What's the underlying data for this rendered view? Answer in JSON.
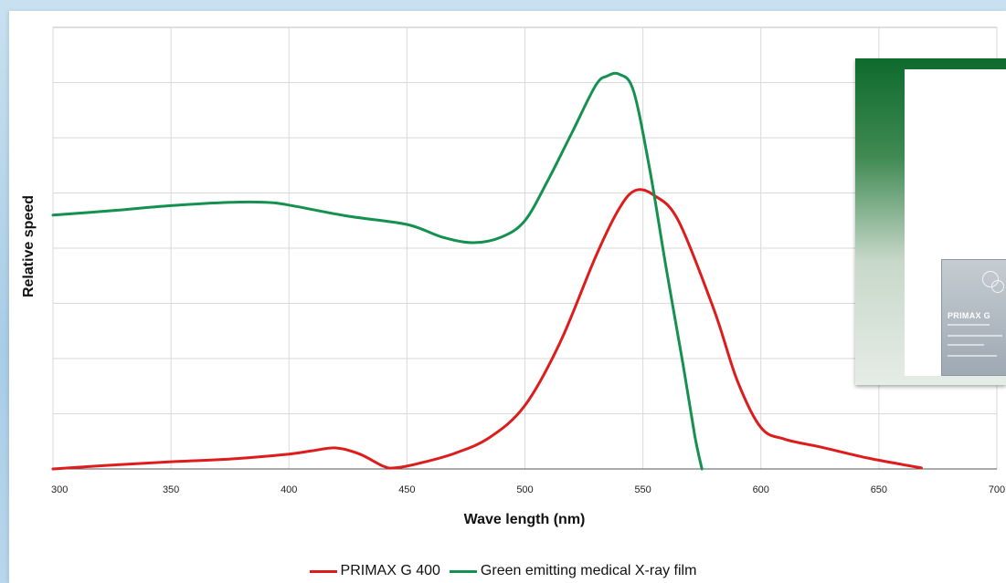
{
  "colors": {
    "primax": "#dd1c1c",
    "green_film": "#15914f",
    "grid": "#d9d9d9"
  },
  "chart_data": {
    "type": "line",
    "title": "",
    "xlabel": "Wave length (nm)",
    "ylabel": "Relative speed",
    "xlim": [
      300,
      700
    ],
    "ylim": [
      0,
      8
    ],
    "x_ticks": [
      300,
      350,
      400,
      450,
      500,
      550,
      600,
      650,
      700
    ],
    "grid": true,
    "legend_position": "bottom-center",
    "series": [
      {
        "name": "PRIMAX G 400",
        "color": "#dd1c1c",
        "points": [
          [
            300,
            0.0
          ],
          [
            325,
            0.07
          ],
          [
            350,
            0.13
          ],
          [
            375,
            0.18
          ],
          [
            400,
            0.27
          ],
          [
            410,
            0.33
          ],
          [
            420,
            0.38
          ],
          [
            430,
            0.27
          ],
          [
            440,
            0.05
          ],
          [
            445,
            0.02
          ],
          [
            455,
            0.1
          ],
          [
            470,
            0.28
          ],
          [
            485,
            0.57
          ],
          [
            500,
            1.15
          ],
          [
            515,
            2.3
          ],
          [
            530,
            3.85
          ],
          [
            540,
            4.72
          ],
          [
            547,
            5.05
          ],
          [
            555,
            4.95
          ],
          [
            565,
            4.5
          ],
          [
            580,
            2.9
          ],
          [
            590,
            1.6
          ],
          [
            600,
            0.75
          ],
          [
            610,
            0.54
          ],
          [
            625,
            0.4
          ],
          [
            645,
            0.2
          ],
          [
            660,
            0.08
          ],
          [
            668,
            0.02
          ]
        ]
      },
      {
        "name": "Green emitting medical X-ray film",
        "color": "#15914f",
        "points": [
          [
            300,
            4.6
          ],
          [
            325,
            4.68
          ],
          [
            350,
            4.77
          ],
          [
            375,
            4.83
          ],
          [
            390,
            4.83
          ],
          [
            400,
            4.78
          ],
          [
            425,
            4.58
          ],
          [
            450,
            4.43
          ],
          [
            465,
            4.2
          ],
          [
            478,
            4.1
          ],
          [
            490,
            4.2
          ],
          [
            500,
            4.5
          ],
          [
            510,
            5.25
          ],
          [
            520,
            6.1
          ],
          [
            530,
            6.95
          ],
          [
            535,
            7.12
          ],
          [
            540,
            7.15
          ],
          [
            546,
            6.85
          ],
          [
            553,
            5.4
          ],
          [
            560,
            3.6
          ],
          [
            567,
            1.9
          ],
          [
            572,
            0.6
          ],
          [
            575,
            0.0
          ]
        ]
      }
    ]
  },
  "inset": {
    "box_label": "PRIMAX G"
  }
}
